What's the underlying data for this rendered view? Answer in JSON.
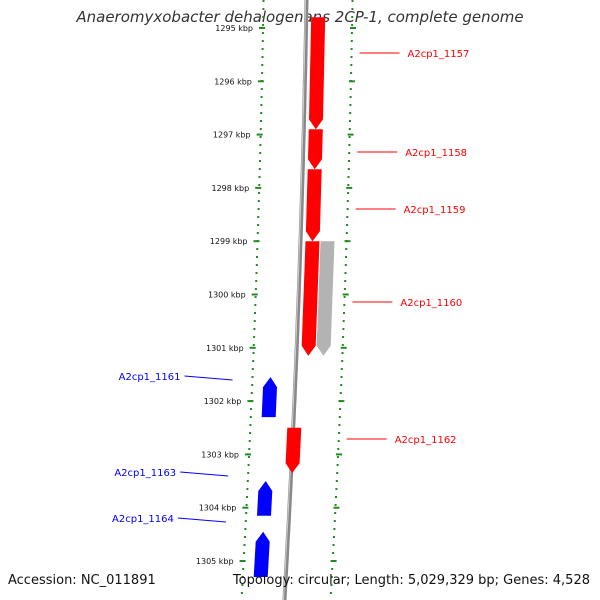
{
  "title": "Anaeromyxobacter dehalogenans 2CP-1, complete genome",
  "accession_text": "Accession: NC_011891",
  "summary_text": "Topology: circular; Length: 5,029,329 bp; Genes: 4,528",
  "colors": {
    "forward_gene": "#ff0000",
    "reverse_gene": "#0000ff",
    "other_feature": "#b3b3b3",
    "backbone": "#888888",
    "scale": "#228b22",
    "label_text": "#111111"
  },
  "scale_ticks": [
    {
      "kbp": 1295,
      "label": "1295 kbp"
    },
    {
      "kbp": 1296,
      "label": "1296 kbp"
    },
    {
      "kbp": 1297,
      "label": "1297 kbp"
    },
    {
      "kbp": 1298,
      "label": "1298 kbp"
    },
    {
      "kbp": 1299,
      "label": "1299 kbp"
    },
    {
      "kbp": 1300,
      "label": "1300 kbp"
    },
    {
      "kbp": 1301,
      "label": "1301 kbp"
    },
    {
      "kbp": 1302,
      "label": "1302 kbp"
    },
    {
      "kbp": 1303,
      "label": "1303 kbp"
    },
    {
      "kbp": 1304,
      "label": "1304 kbp"
    },
    {
      "kbp": 1305,
      "label": "1305 kbp"
    }
  ],
  "genes": [
    {
      "label": "A2cp1_1157",
      "strand": "+",
      "start_kbp": 1294.8,
      "end_kbp": 1296.9
    },
    {
      "label": "A2cp1_1158",
      "strand": "+",
      "start_kbp": 1296.9,
      "end_kbp": 1297.65
    },
    {
      "label": "A2cp1_1159",
      "strand": "+",
      "start_kbp": 1297.65,
      "end_kbp": 1299.0
    },
    {
      "label": "A2cp1_1160",
      "strand": "+",
      "start_kbp": 1299.0,
      "end_kbp": 1301.15
    },
    {
      "label": "A2cp1_1161",
      "strand": "-",
      "start_kbp": 1301.55,
      "end_kbp": 1302.3
    },
    {
      "label": "A2cp1_1162",
      "strand": "+",
      "start_kbp": 1302.5,
      "end_kbp": 1303.35
    },
    {
      "label": "A2cp1_1163",
      "strand": "-",
      "start_kbp": 1303.5,
      "end_kbp": 1304.15
    },
    {
      "label": "A2cp1_1164",
      "strand": "-",
      "start_kbp": 1304.45,
      "end_kbp": 1305.3
    }
  ],
  "other_features": [
    {
      "strand": "+",
      "start_kbp": 1299.0,
      "end_kbp": 1301.15
    }
  ]
}
